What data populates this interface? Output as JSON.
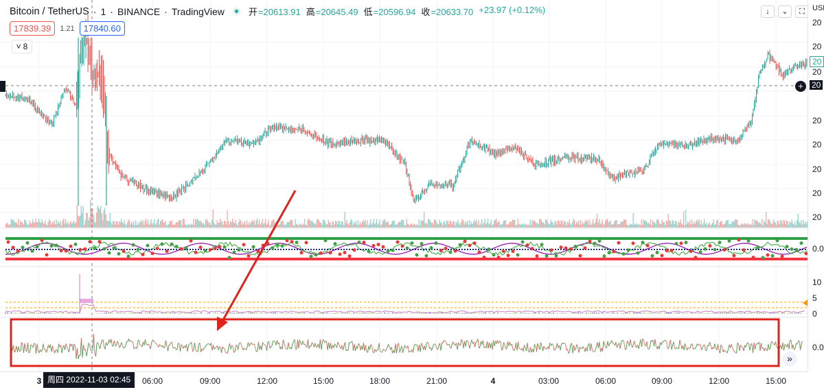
{
  "header": {
    "symbol": "Bitcoin / TetherUS",
    "sep1": "·",
    "interval": "1",
    "sep2": "·",
    "exchange": "BINANCE",
    "sep3": "·",
    "source": "TradingView",
    "open_label": "开",
    "open_value": "=20613.91",
    "high_label": "高",
    "high_value": "=20645.49",
    "low_label": "低",
    "low_value": "=20596.94",
    "close_label": "收",
    "close_value": "=20633.70",
    "change": "+23.97 (+0.12%)"
  },
  "quote": {
    "bid": "17839.39",
    "spread": "1.21",
    "ask": "17840.60"
  },
  "indicators_toggle": {
    "arrow": "˅",
    "count": "8"
  },
  "top_buttons": {
    "down": "↓",
    "collapse": "⌄",
    "fullscreen": "⛶"
  },
  "price_axis": {
    "currency": "USDT",
    "labels": [
      "20",
      "20",
      "20",
      "20",
      "20",
      "20",
      "20",
      "20",
      "20"
    ],
    "last_price_tag": "20",
    "crosshair_tag": "20",
    "osc1_zero": "0.0",
    "osc2_top": "10",
    "osc2_mid": "5",
    "osc2_zero": "0",
    "osc3_zero": "0.0"
  },
  "time_axis": {
    "labels": [
      "3",
      "06:00",
      "09:00",
      "12:00",
      "15:00",
      "18:00",
      "21:00",
      "4",
      "03:00",
      "06:00",
      "09:00",
      "12:00",
      "15:00"
    ],
    "crosshair_time": "周四 2022-11-03   02:45"
  },
  "buttons": {
    "jump_to_realtime": "»",
    "plus": "+"
  },
  "colors": {
    "up": "#26a69a",
    "down": "#ef5350",
    "annotation": "#e0231a",
    "green_band": "#2e9e47",
    "red_band": "#f23645",
    "purple_line": "#9c27b0",
    "pink_fill": "#e9a7e2"
  }
}
